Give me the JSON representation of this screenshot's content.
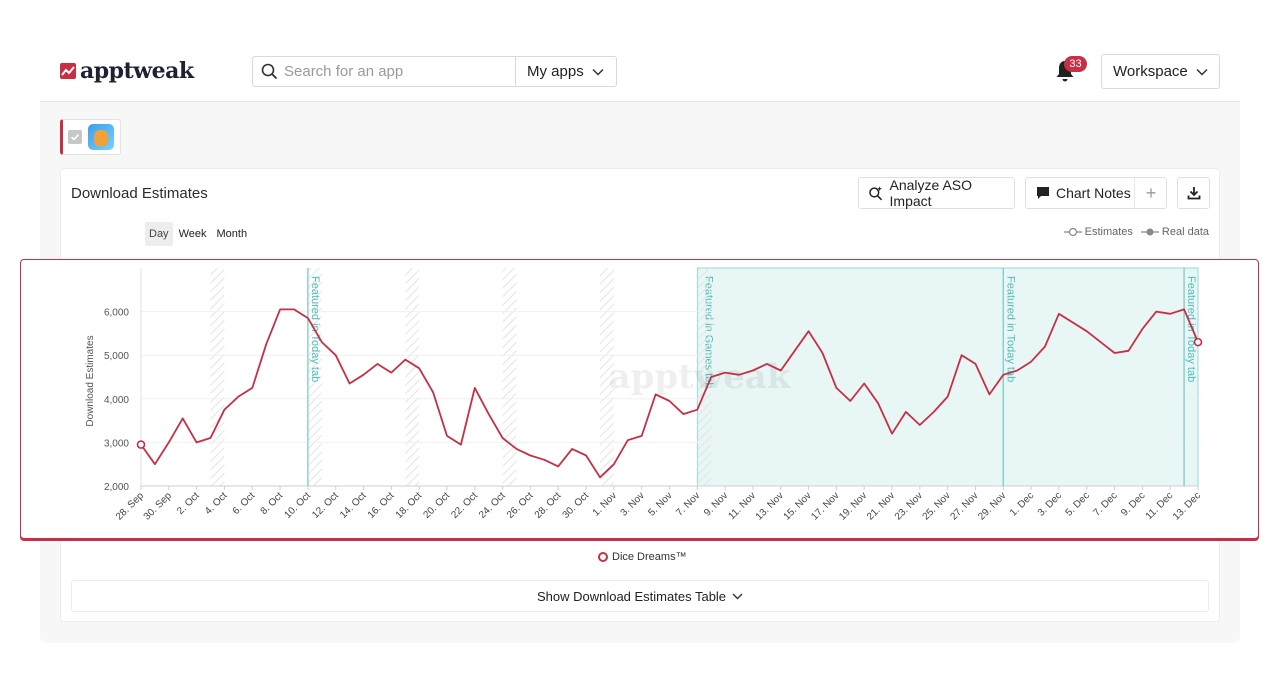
{
  "header": {
    "logo_text": "apptweak",
    "search": {
      "placeholder": "Search for an app",
      "value": ""
    },
    "my_apps_label": "My apps",
    "notification_count": "33",
    "workspace_label": "Workspace"
  },
  "card": {
    "title": "Download Estimates",
    "analyze_label": "Analyze ASO Impact",
    "chart_notes_label": "Chart Notes",
    "period_tabs": [
      "Day",
      "Week",
      "Month"
    ],
    "active_period": "Day",
    "legend_estimates": "Estimates",
    "legend_real": "Real data",
    "series_name": "Dice Dreams™",
    "table_toggle_label": "Show Download Estimates Table",
    "watermark": "apptweak"
  },
  "colors": {
    "accent": "#c62f44",
    "featured_fill": "#e9f6f6",
    "featured_line": "#7fd1cf"
  },
  "chart_data": {
    "type": "line",
    "ylabel": "Download Estimates",
    "ylim": [
      2000,
      7000
    ],
    "yticks": [
      2000,
      3000,
      4000,
      5000,
      6000
    ],
    "ytick_labels": [
      "2,000",
      "3,000",
      "4,000",
      "5,000",
      "6,000"
    ],
    "x": [
      "28 Sep",
      "29 Sep",
      "30 Sep",
      "1 Oct",
      "2 Oct",
      "3 Oct",
      "4 Oct",
      "5 Oct",
      "6 Oct",
      "7 Oct",
      "8 Oct",
      "9 Oct",
      "10 Oct",
      "11 Oct",
      "12 Oct",
      "13 Oct",
      "14 Oct",
      "15 Oct",
      "16 Oct",
      "17 Oct",
      "18 Oct",
      "19 Oct",
      "20 Oct",
      "21 Oct",
      "22 Oct",
      "23 Oct",
      "24 Oct",
      "25 Oct",
      "26 Oct",
      "27 Oct",
      "28 Oct",
      "29 Oct",
      "30 Oct",
      "31 Oct",
      "1 Nov",
      "2 Nov",
      "3 Nov",
      "4 Nov",
      "5 Nov",
      "6 Nov",
      "7 Nov",
      "8 Nov",
      "9 Nov",
      "10 Nov",
      "11 Nov",
      "12 Nov",
      "13 Nov",
      "14 Nov",
      "15 Nov",
      "16 Nov",
      "17 Nov",
      "18 Nov",
      "19 Nov",
      "20 Nov",
      "21 Nov",
      "22 Nov",
      "23 Nov",
      "24 Nov",
      "25 Nov",
      "26 Nov",
      "27 Nov",
      "28 Nov",
      "29 Nov",
      "30 Nov",
      "1 Dec",
      "2 Dec",
      "3 Dec",
      "4 Dec",
      "5 Dec",
      "6 Dec",
      "7 Dec",
      "8 Dec",
      "9 Dec",
      "10 Dec",
      "11 Dec",
      "12 Dec",
      "13 Dec"
    ],
    "xtick_labels": [
      "28. Sep",
      "30. Sep",
      "2. Oct",
      "4. Oct",
      "6. Oct",
      "8. Oct",
      "10. Oct",
      "12. Oct",
      "14. Oct",
      "16. Oct",
      "18. Oct",
      "20. Oct",
      "22. Oct",
      "24. Oct",
      "26. Oct",
      "28. Oct",
      "30. Oct",
      "1. Nov",
      "3. Nov",
      "5. Nov",
      "7. Nov",
      "9. Nov",
      "11. Nov",
      "13. Nov",
      "15. Nov",
      "17. Nov",
      "19. Nov",
      "21. Nov",
      "23. Nov",
      "25. Nov",
      "27. Nov",
      "29. Nov",
      "1. Dec",
      "3. Dec",
      "5. Dec",
      "7. Dec",
      "9. Dec",
      "11. Dec",
      "13. Dec"
    ],
    "series": [
      {
        "name": "Dice Dreams™",
        "values": [
          2950,
          2500,
          3000,
          3550,
          3000,
          3100,
          3750,
          4050,
          4250,
          5250,
          6050,
          6050,
          5850,
          5300,
          5000,
          4350,
          4550,
          4800,
          4600,
          4900,
          4700,
          4150,
          3150,
          2950,
          4250,
          3650,
          3100,
          2850,
          2700,
          2600,
          2450,
          2850,
          2700,
          2200,
          2500,
          3050,
          3150,
          4100,
          3950,
          3650,
          3750,
          4500,
          4600,
          4550,
          4650,
          4800,
          4650,
          5100,
          5550,
          5050,
          4250,
          3950,
          4350,
          3900,
          3200,
          3700,
          3400,
          3700,
          4050,
          5000,
          4800,
          4100,
          4550,
          4650,
          4850,
          5200,
          5950,
          5750,
          5550,
          5300,
          5050,
          5100,
          5600,
          6000,
          5950,
          6050,
          5300
        ]
      }
    ],
    "weekends": [
      [
        "3 Oct",
        "4 Oct"
      ],
      [
        "10 Oct",
        "11 Oct"
      ],
      [
        "17 Oct",
        "18 Oct"
      ],
      [
        "24 Oct",
        "25 Oct"
      ],
      [
        "31 Oct",
        "1 Nov"
      ],
      [
        "7 Nov",
        "8 Nov"
      ]
    ],
    "featured_regions": [
      {
        "label": "Featured in Games tab",
        "from": "7 Nov",
        "to": "13 Dec"
      }
    ],
    "featured_markers": [
      {
        "label": "Featured in Today tab",
        "at": "10 Oct"
      },
      {
        "label": "Featured in Today tab",
        "at": "29 Nov"
      },
      {
        "label": "Featured in Today tab",
        "at": "12 Dec"
      }
    ],
    "grid": true
  }
}
